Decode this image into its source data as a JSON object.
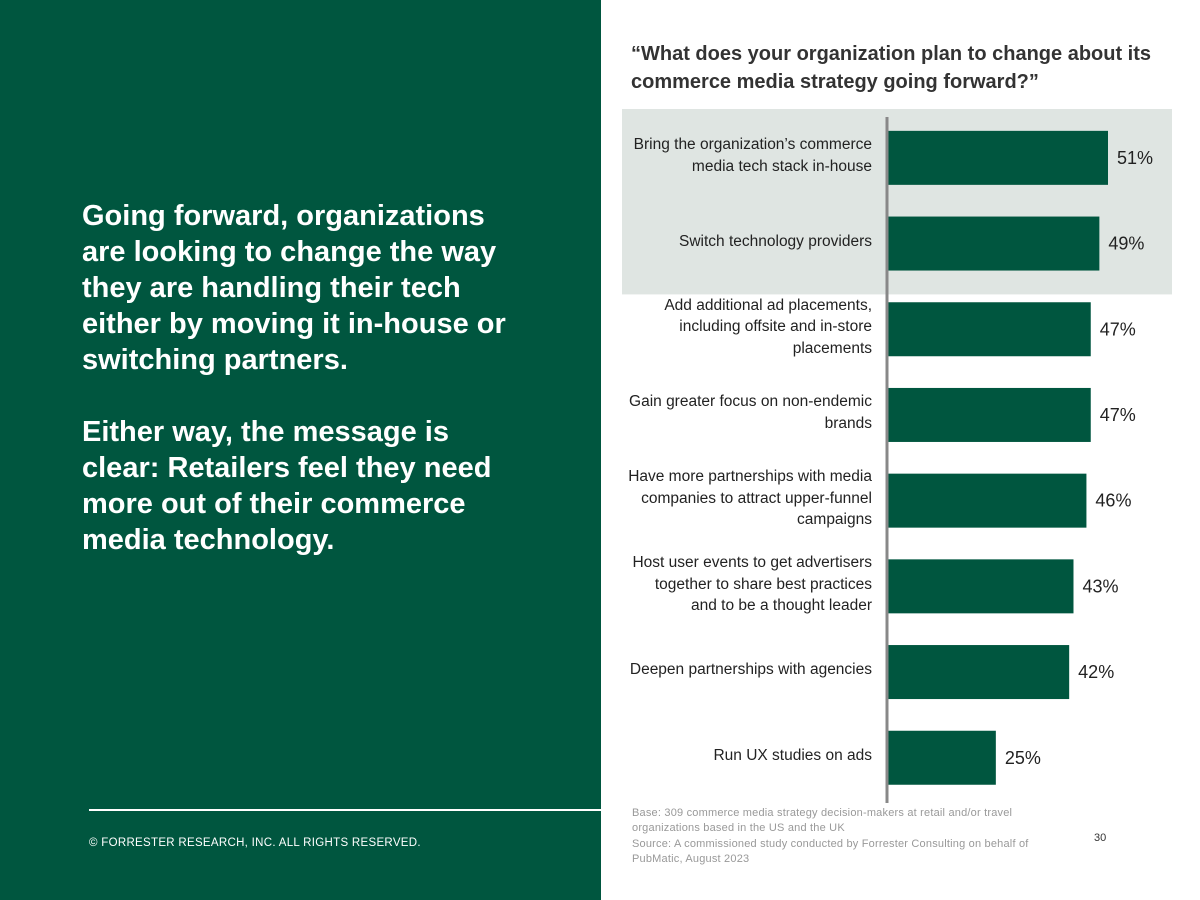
{
  "left_panel": {
    "headline": "Going forward, organizations are looking to change the way they are handling their tech either by moving it in-house or switching partners.",
    "subheadline": "Either way, the message is clear: Retailers feel they need more out of their commerce media technology.",
    "copyright": "© FORRESTER RESEARCH, INC. ALL RIGHTS RESERVED."
  },
  "colors": {
    "panel_green": "#00563f",
    "bar_green": "#00563f",
    "highlight_band": "#dfe5e2",
    "axis": "#888888"
  },
  "chart_data": {
    "type": "bar",
    "orientation": "horizontal",
    "title": "“What does your organization plan to change about its commerce media strategy going forward?”",
    "categories": [
      "Bring the organization’s commerce media tech stack in-house",
      "Switch technology providers",
      "Add additional ad placements, including offsite and in-store placements",
      "Gain greater focus on non-endemic brands",
      "Have more partnerships with media companies to attract upper-funnel campaigns",
      "Host user events to get advertisers together to share best practices and to be a thought leader",
      "Deepen partnerships with agencies",
      "Run UX studies on ads"
    ],
    "values": [
      51,
      49,
      47,
      47,
      46,
      43,
      42,
      25
    ],
    "data_labels": [
      "51%",
      "49%",
      "47%",
      "47%",
      "46%",
      "43%",
      "42%",
      "25%"
    ],
    "highlighted": [
      0,
      1
    ],
    "unit": "%",
    "xlim": [
      0,
      60
    ]
  },
  "footnotes": {
    "base": "Base: 309 commerce media strategy decision-makers at retail and/or travel organizations based in the US and the UK",
    "source": "Source: A commissioned study conducted by Forrester Consulting on behalf of PubMatic, August 2023"
  },
  "page_number": "30"
}
